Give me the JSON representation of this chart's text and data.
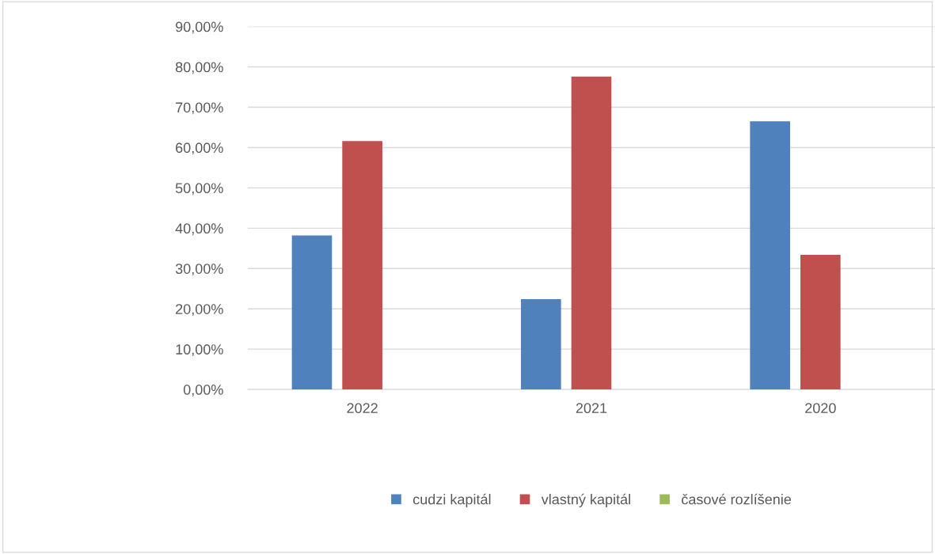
{
  "chart_data": {
    "type": "bar",
    "categories": [
      "2022",
      "2021",
      "2020"
    ],
    "series": [
      {
        "name": "cudzi kapitál",
        "color": "#4f81bd",
        "values": [
          38.2,
          22.4,
          66.5
        ]
      },
      {
        "name": "vlastný kapitál",
        "color": "#c0504d",
        "values": [
          61.6,
          77.6,
          33.4
        ]
      },
      {
        "name": "časové rozlíšenie",
        "color": "#9bbb59",
        "values": [
          null,
          null,
          null
        ]
      }
    ],
    "ylim": [
      0,
      90
    ],
    "yticks": [
      {
        "value": 0,
        "label": "0,00%"
      },
      {
        "value": 10,
        "label": "10,00%"
      },
      {
        "value": 20,
        "label": "20,00%"
      },
      {
        "value": 30,
        "label": "30,00%"
      },
      {
        "value": 40,
        "label": "40,00%"
      },
      {
        "value": 50,
        "label": "50,00%"
      },
      {
        "value": 60,
        "label": "60,00%"
      },
      {
        "value": 70,
        "label": "70,00%"
      },
      {
        "value": 80,
        "label": "80,00%"
      },
      {
        "value": 90,
        "label": "90,00%"
      }
    ],
    "grid": "y",
    "legend": "bottom"
  }
}
